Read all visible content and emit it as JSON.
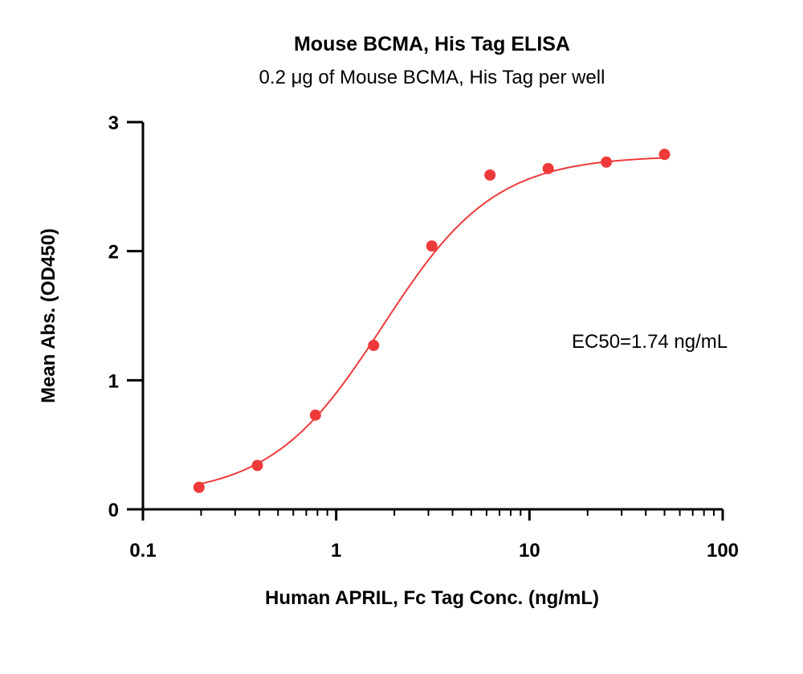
{
  "chart_data": {
    "type": "scatter",
    "title": "Mouse BCMA, His Tag ELISA",
    "subtitle": "0.2 μg of Mouse BCMA, His Tag per well",
    "xlabel": "Human APRIL, Fc Tag Conc. (ng/mL)",
    "ylabel": "Mean Abs. (OD450)",
    "xscale": "log",
    "xlim": [
      0.1,
      100
    ],
    "ylim": [
      0,
      3
    ],
    "xticks": [
      0.1,
      1,
      10,
      100
    ],
    "xtick_labels": [
      "0.1",
      "1",
      "10",
      "100"
    ],
    "yticks": [
      0,
      1,
      2,
      3
    ],
    "ytick_labels": [
      "0",
      "1",
      "2",
      "3"
    ],
    "grid": false,
    "series": [
      {
        "x": [
          0.195,
          0.391,
          0.781,
          1.5625,
          3.125,
          6.25,
          12.5,
          25,
          50
        ],
        "y": [
          0.17,
          0.34,
          0.73,
          1.27,
          2.04,
          2.59,
          2.64,
          2.69,
          2.75
        ],
        "color": "#ee3a3a",
        "fit": "4PL",
        "fit_params": {
          "bottom": 0.1,
          "top": 2.74,
          "ec50": 1.74,
          "hill": 1.5
        }
      }
    ],
    "annotations": [
      {
        "text": "EC50=1.74 ng/mL"
      }
    ]
  }
}
